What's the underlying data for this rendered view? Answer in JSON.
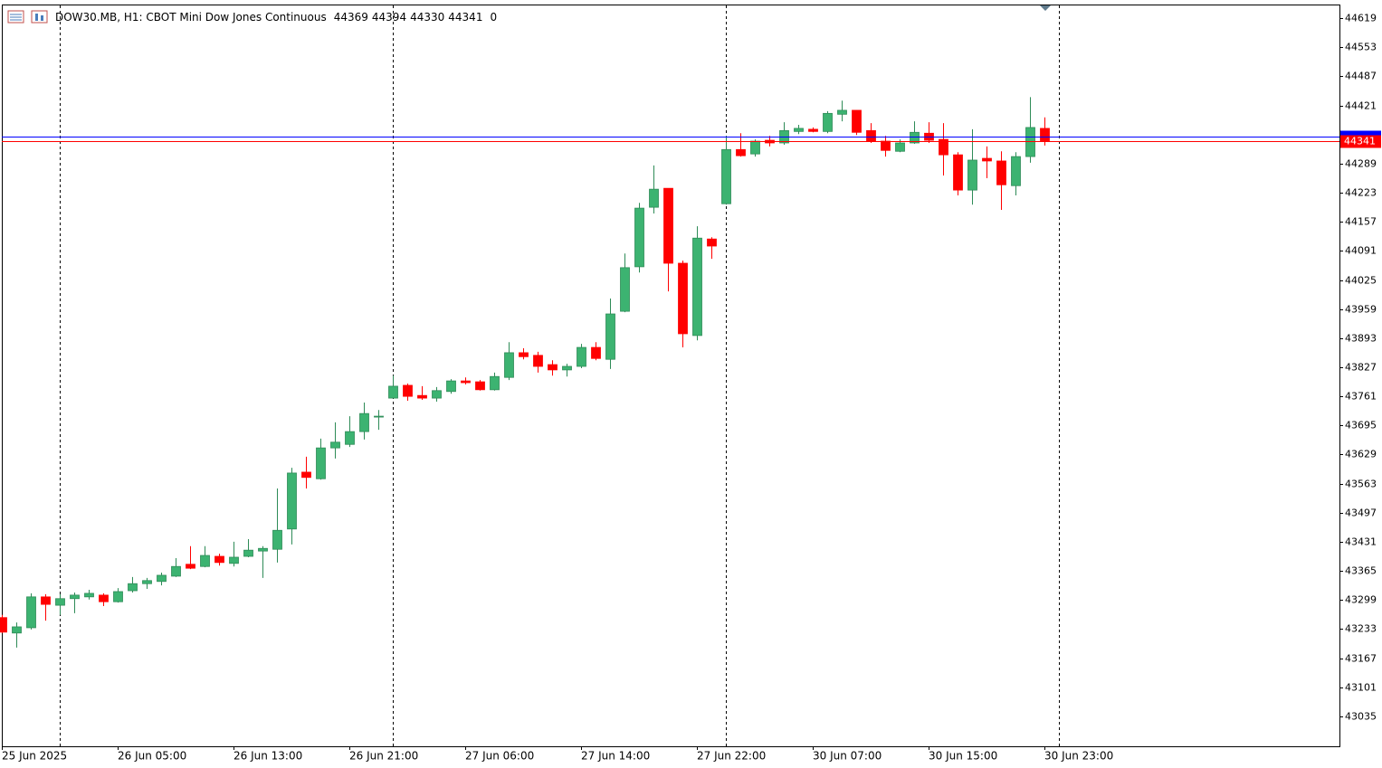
{
  "chart_data": {
    "type": "candlestick",
    "title": "DOW30.MB, H1:  CBOT Mini Dow Jones Continuous",
    "header_tail": "0",
    "categories": [
      "25 Jun 2025",
      null,
      null,
      null,
      null,
      null,
      null,
      null,
      "26 Jun 05:00",
      null,
      null,
      null,
      null,
      null,
      null,
      null,
      "26 Jun 13:00",
      null,
      null,
      null,
      null,
      null,
      null,
      null,
      "26 Jun 21:00",
      null,
      null,
      null,
      null,
      null,
      null,
      null,
      "27 Jun 06:00",
      null,
      null,
      null,
      null,
      null,
      null,
      null,
      "27 Jun 14:00",
      null,
      null,
      null,
      null,
      null,
      null,
      null,
      "27 Jun 22:00",
      null,
      null,
      null,
      null,
      null,
      null,
      null,
      "30 Jun 07:00",
      null,
      null,
      null,
      null,
      null,
      null,
      null,
      "30 Jun 15:00",
      null,
      null,
      null,
      null,
      null,
      null,
      null,
      "30 Jun 23:00"
    ],
    "open": [
      43259,
      43224,
      43236,
      43306,
      43287,
      43302,
      43306,
      43310,
      43295,
      43320,
      43336,
      43341,
      43353,
      43380,
      43375,
      43398,
      43382,
      43398,
      43410,
      43414,
      43460,
      43589,
      43574,
      43644,
      43652,
      43681,
      43714,
      43757,
      43786,
      43763,
      43757,
      43772,
      43796,
      43794,
      43776,
      43804,
      43860,
      43854,
      43833,
      43821,
      43829,
      43872,
      43845,
      43954,
      44055,
      44190,
      44233,
      44063,
      43899,
      44118,
      44198,
      44321,
      44311,
      44342,
      44336,
      44362,
      44367,
      44362,
      44401,
      44410,
      44364,
      44340,
      44317,
      44336,
      44358,
      44344,
      44309,
      44229,
      44301,
      44295,
      44239,
      44305,
      44369
    ],
    "high": [
      43265,
      43248,
      43314,
      43312,
      43312,
      43316,
      43322,
      43314,
      43326,
      43351,
      43349,
      43361,
      43394,
      43421,
      43421,
      43404,
      43431,
      43437,
      43421,
      43552,
      43599,
      43624,
      43665,
      43702,
      43716,
      43747,
      43730,
      43808,
      43790,
      43784,
      43782,
      43800,
      43804,
      43798,
      43815,
      43884,
      43870,
      43862,
      43843,
      43835,
      43880,
      43884,
      43983,
      44085,
      44200,
      44285,
      44233,
      44069,
      44147,
      44122,
      44352,
      44358,
      44344,
      44352,
      44383,
      44377,
      44371,
      44408,
      44432,
      44410,
      44381,
      44352,
      44344,
      44385,
      44383,
      44381,
      44315,
      44367,
      44328,
      44317,
      44315,
      44440,
      44394
    ],
    "low": [
      43224,
      43191,
      43232,
      43252,
      43265,
      43269,
      43300,
      43285,
      43293,
      43316,
      43324,
      43332,
      43351,
      43369,
      43373,
      43377,
      43375,
      43396,
      43349,
      43384,
      43425,
      43552,
      43572,
      43620,
      43646,
      43663,
      43685,
      43757,
      43751,
      43753,
      43749,
      43767,
      43788,
      43774,
      43774,
      43798,
      43845,
      43815,
      43808,
      43806,
      43825,
      43843,
      43823,
      43952,
      44042,
      44176,
      43999,
      43872,
      43888,
      44073,
      44196,
      44305,
      44305,
      44328,
      44332,
      44356,
      44360,
      44358,
      44385,
      44354,
      44336,
      44305,
      44315,
      44334,
      44336,
      44262,
      44217,
      44196,
      44256,
      44184,
      44217,
      44291,
      44330
    ],
    "close": [
      43226,
      43238,
      43306,
      43289,
      43302,
      43310,
      43314,
      43295,
      43318,
      43336,
      43343,
      43355,
      43375,
      43371,
      43400,
      43384,
      43396,
      43412,
      43416,
      43457,
      43587,
      43577,
      43644,
      43657,
      43681,
      43722,
      43716,
      43784,
      43761,
      43757,
      43774,
      43796,
      43792,
      43776,
      43806,
      43860,
      43851,
      43829,
      43821,
      43829,
      43872,
      43847,
      43948,
      44053,
      44188,
      44231,
      44063,
      43903,
      44120,
      44102,
      44321,
      44307,
      44340,
      44336,
      44364,
      44369,
      44362,
      44403,
      44410,
      44360,
      44340,
      44319,
      44336,
      44360,
      44342,
      44309,
      44229,
      44297,
      44295,
      44241,
      44305,
      44371,
      44341
    ],
    "up_color": "#3cb371",
    "down_color": "#ff0000",
    "ylim": [
      42967,
      44650
    ],
    "yticks": [
      44619,
      44553,
      44487,
      44421,
      44355,
      44289,
      44223,
      44157,
      44091,
      44025,
      43959,
      43893,
      43827,
      43761,
      43695,
      43629,
      43563,
      43497,
      43431,
      43365,
      43299,
      43233,
      43167,
      43101,
      43035
    ],
    "ask_line": {
      "value": 44350,
      "color": "#0000ff"
    },
    "bid_line": {
      "value": 44341,
      "color": "#ff0000"
    }
  }
}
